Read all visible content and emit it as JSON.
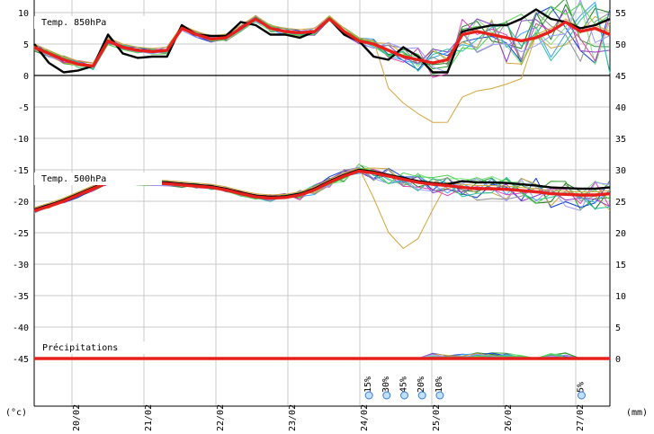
{
  "chart_data": {
    "type": "line",
    "left_unit": "(°c)",
    "right_unit": "(mm)",
    "panel_labels": {
      "t850": "Temp. 850hPa",
      "t500": "Temp. 500hPa",
      "precip": "Précipitations"
    },
    "x_labels": [
      "20/02",
      "21/02",
      "22/02",
      "23/02",
      "24/02",
      "25/02",
      "26/02",
      "27/02"
    ],
    "left_ticks": [
      10,
      5,
      0,
      -5,
      -10,
      -15,
      -20,
      -25,
      -30,
      -35,
      -40,
      -45
    ],
    "right_ticks": [
      55,
      50,
      45,
      40,
      35,
      30,
      25,
      20,
      15,
      10,
      5,
      0
    ],
    "snow_probabilities": [
      {
        "slot": 38,
        "label": "15%"
      },
      {
        "slot": 40,
        "label": "30%"
      },
      {
        "slot": 42,
        "label": "45%"
      },
      {
        "slot": 44,
        "label": "20%"
      },
      {
        "slot": 46,
        "label": "10%"
      },
      {
        "slot": 62,
        "label": "5%"
      }
    ],
    "colors": {
      "mean": "#e8201c",
      "control": "#000000",
      "members": [
        "#1a7a1a",
        "#2a9d2a",
        "#0b3bd6",
        "#3aa3ff",
        "#7fe57f",
        "#d4a53a",
        "#8c3cc8",
        "#e040b0",
        "#8f8f8f",
        "#20c0a0",
        "#9999ff",
        "#4fd24f"
      ]
    },
    "series_t850_mean": [
      4.5,
      3.5,
      2.5,
      1.8,
      1.5,
      5.5,
      4.5,
      4.0,
      3.8,
      4.0,
      7.5,
      6.5,
      5.8,
      6.0,
      7.5,
      9.0,
      7.5,
      7.0,
      6.8,
      7.0,
      9.0,
      7.0,
      5.5,
      5.0,
      4.0,
      3.0,
      2.5,
      2.0,
      2.5,
      6.5,
      7.0,
      6.5,
      6.0,
      5.5,
      6.0,
      7.0,
      8.5,
      7.0,
      7.5,
      6.5
    ],
    "series_t850_control": [
      5.0,
      2.0,
      0.5,
      0.8,
      1.5,
      6.5,
      3.5,
      2.8,
      3.0,
      3.0,
      8.0,
      6.5,
      6.3,
      6.3,
      8.5,
      8.0,
      6.5,
      6.5,
      6.0,
      7.0,
      9.0,
      6.5,
      5.5,
      3.0,
      2.5,
      4.5,
      3.0,
      0.5,
      0.5,
      7.0,
      7.5,
      8.0,
      8.0,
      9.0,
      10.5,
      9.0,
      8.5,
      7.5,
      8.0,
      9.0
    ],
    "series_t500_mean": [
      -21.5,
      -20.8,
      -20.0,
      -19.0,
      -18.0,
      -17.0,
      -16.9,
      -17.0,
      -17.1,
      -17.2,
      -17.4,
      -17.6,
      -17.8,
      -18.2,
      -18.8,
      -19.3,
      -19.5,
      -19.4,
      -19.0,
      -18.2,
      -17.0,
      -16.0,
      -15.2,
      -15.5,
      -16.0,
      -16.5,
      -17.0,
      -17.3,
      -17.5,
      -17.8,
      -18.0,
      -18.0,
      -18.1,
      -18.3,
      -18.5,
      -18.8,
      -18.9,
      -19.0,
      -19.0,
      -18.8
    ],
    "series_precip_mean": [
      0,
      0,
      0,
      0,
      0,
      0,
      0,
      0,
      0,
      0,
      0,
      0,
      0,
      0,
      0,
      0,
      0,
      0,
      0,
      0,
      0,
      0,
      0,
      0,
      0,
      0,
      0,
      0,
      0,
      0,
      0,
      0,
      0,
      0,
      0,
      0,
      0,
      0,
      0,
      0
    ]
  }
}
